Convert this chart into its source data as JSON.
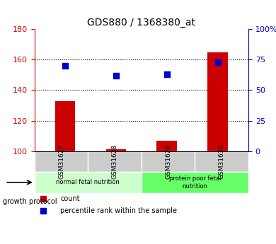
{
  "title": "GDS880 / 1368380_at",
  "categories": [
    "GSM31627",
    "GSM31628",
    "GSM31629",
    "GSM31630"
  ],
  "counts": [
    133,
    101,
    107,
    165
  ],
  "percentiles": [
    70,
    62,
    63,
    73
  ],
  "ylim_left": [
    100,
    180
  ],
  "ylim_right": [
    0,
    100
  ],
  "yticks_left": [
    100,
    120,
    140,
    160,
    180
  ],
  "yticks_right": [
    0,
    25,
    50,
    75,
    100
  ],
  "ytick_labels_right": [
    "0",
    "25",
    "50",
    "75",
    "100%"
  ],
  "bar_color": "#cc0000",
  "scatter_color": "#0000cc",
  "groups": [
    {
      "label": "normal fetal nutrition",
      "indices": [
        0,
        1
      ],
      "color": "#ccffcc"
    },
    {
      "label": "protein poor fetal\nnutrition",
      "indices": [
        2,
        3
      ],
      "color": "#66ff66"
    }
  ],
  "group_label": "growth protocol",
  "legend_count_label": "count",
  "legend_percentile_label": "percentile rank within the sample",
  "grid_color": "#000000",
  "xlabel_bg_color": "#cccccc",
  "title_color": "#000000",
  "left_axis_color": "#cc0000",
  "right_axis_color": "#0000cc"
}
